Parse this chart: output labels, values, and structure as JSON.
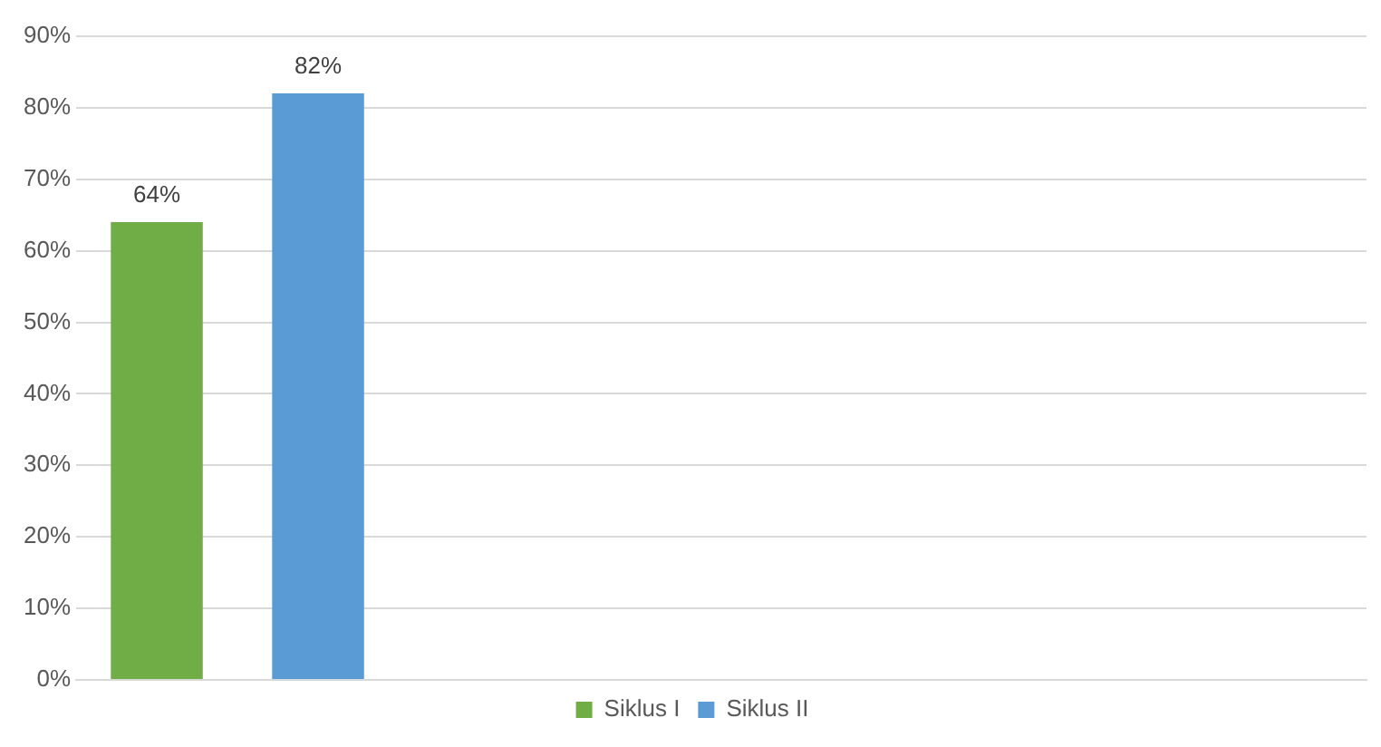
{
  "chart_data": {
    "type": "bar",
    "categories": [
      null,
      null,
      null,
      null
    ],
    "series": [
      {
        "name": "Siklus I",
        "color": "#70ad47",
        "values": [
          64,
          null,
          null,
          null
        ],
        "value_labels": [
          "64%",
          null,
          null,
          null
        ]
      },
      {
        "name": "Siklus II",
        "color": "#5b9bd5",
        "values": [
          82,
          null,
          null,
          null
        ],
        "value_labels": [
          "82%",
          null,
          null,
          null
        ]
      }
    ],
    "ylim": [
      0,
      90
    ],
    "yticks": [
      {
        "value": 0,
        "label": "0%"
      },
      {
        "value": 10,
        "label": "10%"
      },
      {
        "value": 20,
        "label": "20%"
      },
      {
        "value": 30,
        "label": "30%"
      },
      {
        "value": 40,
        "label": "40%"
      },
      {
        "value": 50,
        "label": "50%"
      },
      {
        "value": 60,
        "label": "60%"
      },
      {
        "value": 70,
        "label": "70%"
      },
      {
        "value": 80,
        "label": "80%"
      },
      {
        "value": 90,
        "label": "90%"
      }
    ],
    "grid": "y",
    "legend": "bottom",
    "tick_labels": "y"
  }
}
